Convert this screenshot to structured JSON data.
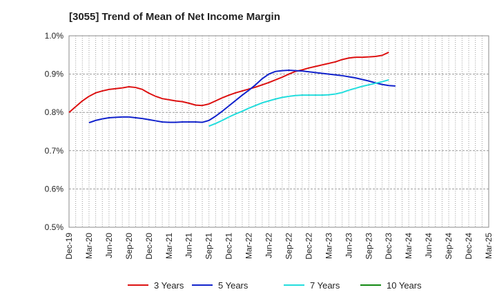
{
  "chart_data": {
    "type": "line",
    "title": "[3055]  Trend of Mean of Net Income Margin",
    "xlabel": "",
    "ylabel": "",
    "x_ticks": [
      "Dec-19",
      "Mar-20",
      "Jun-20",
      "Sep-20",
      "Dec-20",
      "Mar-21",
      "Jun-21",
      "Sep-21",
      "Dec-21",
      "Mar-22",
      "Jun-22",
      "Sep-22",
      "Dec-22",
      "Mar-23",
      "Jun-23",
      "Sep-23",
      "Dec-23",
      "Mar-24",
      "Jun-24",
      "Sep-24",
      "Dec-24",
      "Mar-25"
    ],
    "y_ticks": [
      "0.5%",
      "0.6%",
      "0.7%",
      "0.8%",
      "0.9%",
      "1.0%"
    ],
    "ylim": [
      0.5,
      1.0
    ],
    "grid": true,
    "legend_position": "bottom",
    "colors": {
      "3 Years": "#dd1111",
      "5 Years": "#1122cc",
      "7 Years": "#22dddd",
      "10 Years": "#118811"
    },
    "series": [
      {
        "name": "3 Years",
        "points": [
          [
            0,
            0.8
          ],
          [
            1,
            0.815
          ],
          [
            2,
            0.83
          ],
          [
            3,
            0.842
          ],
          [
            4,
            0.851
          ],
          [
            5,
            0.856
          ],
          [
            6,
            0.86
          ],
          [
            7,
            0.862
          ],
          [
            8,
            0.864
          ],
          [
            9,
            0.867
          ],
          [
            10,
            0.865
          ],
          [
            11,
            0.86
          ],
          [
            12,
            0.85
          ],
          [
            13,
            0.842
          ],
          [
            14,
            0.836
          ],
          [
            15,
            0.833
          ],
          [
            16,
            0.83
          ],
          [
            17,
            0.828
          ],
          [
            18,
            0.824
          ],
          [
            19,
            0.819
          ],
          [
            20,
            0.818
          ],
          [
            21,
            0.822
          ],
          [
            22,
            0.83
          ],
          [
            23,
            0.838
          ],
          [
            24,
            0.845
          ],
          [
            25,
            0.851
          ],
          [
            26,
            0.856
          ],
          [
            27,
            0.861
          ],
          [
            28,
            0.866
          ],
          [
            29,
            0.872
          ],
          [
            30,
            0.878
          ],
          [
            31,
            0.885
          ],
          [
            32,
            0.892
          ],
          [
            33,
            0.9
          ],
          [
            34,
            0.907
          ],
          [
            35,
            0.911
          ],
          [
            36,
            0.916
          ],
          [
            37,
            0.92
          ],
          [
            38,
            0.924
          ],
          [
            39,
            0.928
          ],
          [
            40,
            0.932
          ],
          [
            41,
            0.938
          ],
          [
            42,
            0.942
          ],
          [
            43,
            0.944
          ],
          [
            44,
            0.944
          ],
          [
            45,
            0.945
          ],
          [
            46,
            0.946
          ],
          [
            47,
            0.949
          ],
          [
            48,
            0.957
          ]
        ]
      },
      {
        "name": "5 Years",
        "points": [
          [
            3,
            0.773
          ],
          [
            4,
            0.779
          ],
          [
            5,
            0.783
          ],
          [
            6,
            0.786
          ],
          [
            7,
            0.787
          ],
          [
            8,
            0.788
          ],
          [
            9,
            0.788
          ],
          [
            10,
            0.786
          ],
          [
            11,
            0.784
          ],
          [
            12,
            0.781
          ],
          [
            13,
            0.778
          ],
          [
            14,
            0.775
          ],
          [
            15,
            0.774
          ],
          [
            16,
            0.774
          ],
          [
            17,
            0.775
          ],
          [
            18,
            0.775
          ],
          [
            19,
            0.775
          ],
          [
            20,
            0.774
          ],
          [
            21,
            0.779
          ],
          [
            22,
            0.79
          ],
          [
            23,
            0.803
          ],
          [
            24,
            0.817
          ],
          [
            25,
            0.831
          ],
          [
            26,
            0.845
          ],
          [
            27,
            0.858
          ],
          [
            28,
            0.872
          ],
          [
            29,
            0.888
          ],
          [
            30,
            0.9
          ],
          [
            31,
            0.907
          ],
          [
            32,
            0.909
          ],
          [
            33,
            0.91
          ],
          [
            34,
            0.909
          ],
          [
            35,
            0.908
          ],
          [
            36,
            0.906
          ],
          [
            37,
            0.904
          ],
          [
            38,
            0.902
          ],
          [
            39,
            0.9
          ],
          [
            40,
            0.898
          ],
          [
            41,
            0.896
          ],
          [
            42,
            0.893
          ],
          [
            43,
            0.89
          ],
          [
            44,
            0.886
          ],
          [
            45,
            0.882
          ],
          [
            46,
            0.877
          ],
          [
            47,
            0.873
          ],
          [
            48,
            0.87
          ],
          [
            49,
            0.869
          ]
        ]
      },
      {
        "name": "7 Years",
        "points": [
          [
            21,
            0.764
          ],
          [
            22,
            0.771
          ],
          [
            23,
            0.779
          ],
          [
            24,
            0.788
          ],
          [
            25,
            0.796
          ],
          [
            26,
            0.803
          ],
          [
            27,
            0.811
          ],
          [
            28,
            0.818
          ],
          [
            29,
            0.825
          ],
          [
            30,
            0.83
          ],
          [
            31,
            0.835
          ],
          [
            32,
            0.839
          ],
          [
            33,
            0.842
          ],
          [
            34,
            0.844
          ],
          [
            35,
            0.845
          ],
          [
            36,
            0.845
          ],
          [
            37,
            0.845
          ],
          [
            38,
            0.845
          ],
          [
            39,
            0.846
          ],
          [
            40,
            0.848
          ],
          [
            41,
            0.852
          ],
          [
            42,
            0.858
          ],
          [
            43,
            0.863
          ],
          [
            44,
            0.868
          ],
          [
            45,
            0.872
          ],
          [
            46,
            0.876
          ],
          [
            47,
            0.88
          ],
          [
            48,
            0.885
          ]
        ]
      },
      {
        "name": "10 Years",
        "points": []
      }
    ]
  }
}
